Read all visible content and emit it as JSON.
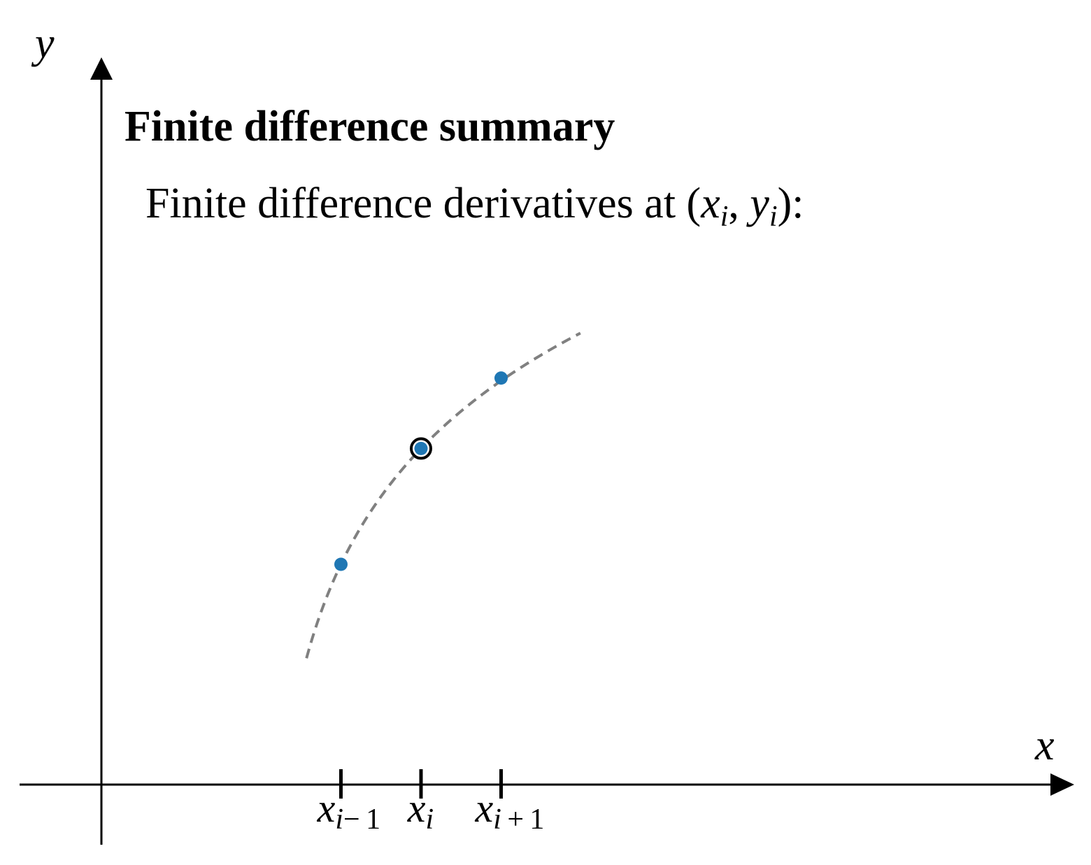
{
  "heading": "Finite difference summary",
  "caption": {
    "prefix": "Finite difference derivatives at (",
    "x_var": "x",
    "x_sub": "i",
    "sep": ", ",
    "y_var": "y",
    "y_sub": "i",
    "suffix": "):"
  },
  "axes": {
    "x_label": "x",
    "y_label": "y"
  },
  "ticks": [
    {
      "var": "x",
      "sub_var": "i",
      "sub_rest": "− 1"
    },
    {
      "var": "x",
      "sub_var": "i",
      "sub_rest": ""
    },
    {
      "var": "x",
      "sub_var": "i",
      "sub_rest": " + 1"
    }
  ],
  "colors": {
    "axis": "#000000",
    "curve": "#808080",
    "point": "#1f77b4",
    "highlight_ring": "#000000"
  },
  "chart_data": {
    "type": "scatter",
    "points": [
      {
        "label": "x_{i-1}",
        "x": 1.0,
        "y": 1.0
      },
      {
        "label": "x_i",
        "x": 2.0,
        "y": 2.2,
        "highlighted": true
      },
      {
        "label": "x_{i+1}",
        "x": 3.0,
        "y": 2.93
      }
    ],
    "curve": {
      "style": "dashed",
      "x_range": [
        0.57,
        3.99
      ]
    }
  }
}
